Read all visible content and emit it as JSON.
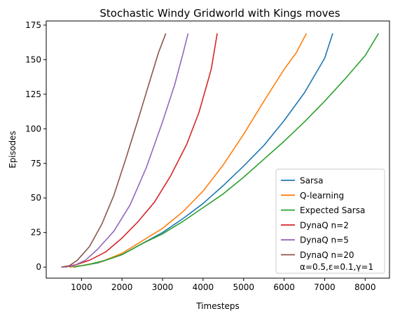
{
  "chart_data": {
    "type": "line",
    "title": "Stochastic Windy Gridworld with Kings moves",
    "xlabel": "Timesteps",
    "ylabel": "Episodes",
    "xlim": [
      130,
      8600
    ],
    "ylim": [
      -8,
      178
    ],
    "xticks": [
      1000,
      2000,
      3000,
      4000,
      5000,
      6000,
      7000,
      8000
    ],
    "yticks": [
      0,
      25,
      50,
      75,
      100,
      125,
      150,
      175
    ],
    "grid": false,
    "legend_position": "lower-right",
    "legend_note": "α=0.5,ε=0.1,γ=1",
    "series": [
      {
        "name": "Sarsa",
        "color": "#1f77b4",
        "points": [
          [
            700,
            0
          ],
          [
            1000,
            1
          ],
          [
            1400,
            3
          ],
          [
            2000,
            9
          ],
          [
            2500,
            17
          ],
          [
            3000,
            25
          ],
          [
            3500,
            35
          ],
          [
            4000,
            46
          ],
          [
            4500,
            59
          ],
          [
            5000,
            73
          ],
          [
            5500,
            88
          ],
          [
            6000,
            106
          ],
          [
            6500,
            126
          ],
          [
            7000,
            151
          ],
          [
            7200,
            169
          ]
        ]
      },
      {
        "name": "Q-learning",
        "color": "#ff7f0e",
        "points": [
          [
            700,
            0
          ],
          [
            1000,
            1
          ],
          [
            1500,
            4
          ],
          [
            2000,
            10
          ],
          [
            2500,
            19
          ],
          [
            3000,
            28
          ],
          [
            3500,
            40
          ],
          [
            4000,
            55
          ],
          [
            4500,
            74
          ],
          [
            5000,
            96
          ],
          [
            5500,
            120
          ],
          [
            6000,
            143
          ],
          [
            6300,
            155
          ],
          [
            6550,
            169
          ]
        ]
      },
      {
        "name": "Expected Sarsa",
        "color": "#2ca02c",
        "points": [
          [
            800,
            0
          ],
          [
            1200,
            2
          ],
          [
            1600,
            5
          ],
          [
            2000,
            9
          ],
          [
            2500,
            17
          ],
          [
            3000,
            24
          ],
          [
            3500,
            33
          ],
          [
            4000,
            43
          ],
          [
            4500,
            53
          ],
          [
            5000,
            65
          ],
          [
            5500,
            78
          ],
          [
            6000,
            91
          ],
          [
            6500,
            105
          ],
          [
            7000,
            120
          ],
          [
            7500,
            136
          ],
          [
            8000,
            153
          ],
          [
            8330,
            169
          ]
        ]
      },
      {
        "name": "DynaQ n=2",
        "color": "#d62728",
        "points": [
          [
            600,
            0
          ],
          [
            900,
            2
          ],
          [
            1200,
            5
          ],
          [
            1600,
            11
          ],
          [
            2000,
            21
          ],
          [
            2400,
            33
          ],
          [
            2800,
            47
          ],
          [
            3200,
            66
          ],
          [
            3600,
            89
          ],
          [
            3900,
            112
          ],
          [
            4200,
            143
          ],
          [
            4350,
            169
          ]
        ]
      },
      {
        "name": "DynaQ n=5",
        "color": "#9467bd",
        "points": [
          [
            550,
            0
          ],
          [
            800,
            1
          ],
          [
            1100,
            5
          ],
          [
            1400,
            13
          ],
          [
            1800,
            26
          ],
          [
            2200,
            45
          ],
          [
            2600,
            72
          ],
          [
            3000,
            105
          ],
          [
            3300,
            132
          ],
          [
            3500,
            154
          ],
          [
            3630,
            169
          ]
        ]
      },
      {
        "name": "DynaQ n=20",
        "color": "#8c564b",
        "points": [
          [
            500,
            0
          ],
          [
            700,
            1
          ],
          [
            900,
            5
          ],
          [
            1200,
            15
          ],
          [
            1500,
            31
          ],
          [
            1800,
            52
          ],
          [
            2100,
            79
          ],
          [
            2400,
            107
          ],
          [
            2700,
            136
          ],
          [
            2900,
            155
          ],
          [
            3080,
            169
          ]
        ]
      }
    ]
  }
}
